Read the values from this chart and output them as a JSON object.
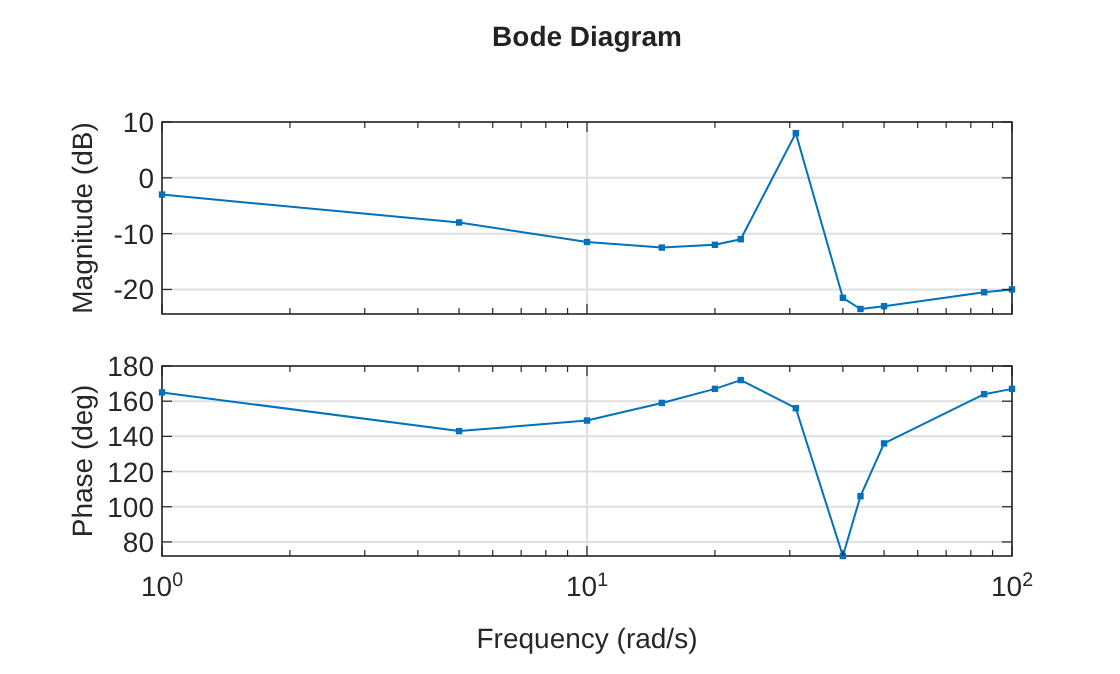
{
  "chart_data": [
    {
      "type": "line",
      "title": "Bode Diagram",
      "ylabel": "Magnitude (dB)",
      "x": [
        1,
        5,
        10,
        15,
        20,
        23,
        31,
        40,
        44,
        50,
        86,
        100
      ],
      "series": [
        {
          "color": "#0072bd",
          "values": [
            -3,
            -8,
            -11.5,
            -12.5,
            -12,
            -11,
            8,
            -21.5,
            -23.5,
            -23,
            -20.5,
            -20
          ]
        }
      ],
      "log": "x",
      "xlim": [
        1,
        100
      ],
      "xticks": [
        {
          "value": 1,
          "label": null
        },
        {
          "value": 10,
          "label": null
        },
        {
          "value": 100,
          "label": null
        }
      ],
      "ylim": [
        -24.4,
        10
      ],
      "yticks": [
        -20,
        -10,
        0,
        10
      ],
      "grid": true,
      "marker": "square",
      "tick_labels": "y"
    },
    {
      "type": "line",
      "ylabel": "Phase (deg)",
      "xlabel": "Frequency (rad/s)",
      "x": [
        1,
        5,
        10,
        15,
        20,
        23,
        31,
        40,
        44,
        50,
        86,
        100
      ],
      "series": [
        {
          "color": "#0072bd",
          "values": [
            165,
            143,
            149,
            159,
            167,
            172,
            156,
            72,
            106,
            136,
            164,
            167
          ]
        }
      ],
      "log": "x",
      "xlim": [
        1,
        100
      ],
      "xticks": [
        {
          "value": 1,
          "label": "10$^{0}$"
        },
        {
          "value": 10,
          "label": "10$^{1}$"
        },
        {
          "value": 100,
          "label": "10$^{2}$"
        }
      ],
      "ylim": [
        72,
        180
      ],
      "yticks": [
        80,
        100,
        120,
        140,
        160,
        180
      ],
      "grid": true,
      "marker": "square"
    }
  ]
}
